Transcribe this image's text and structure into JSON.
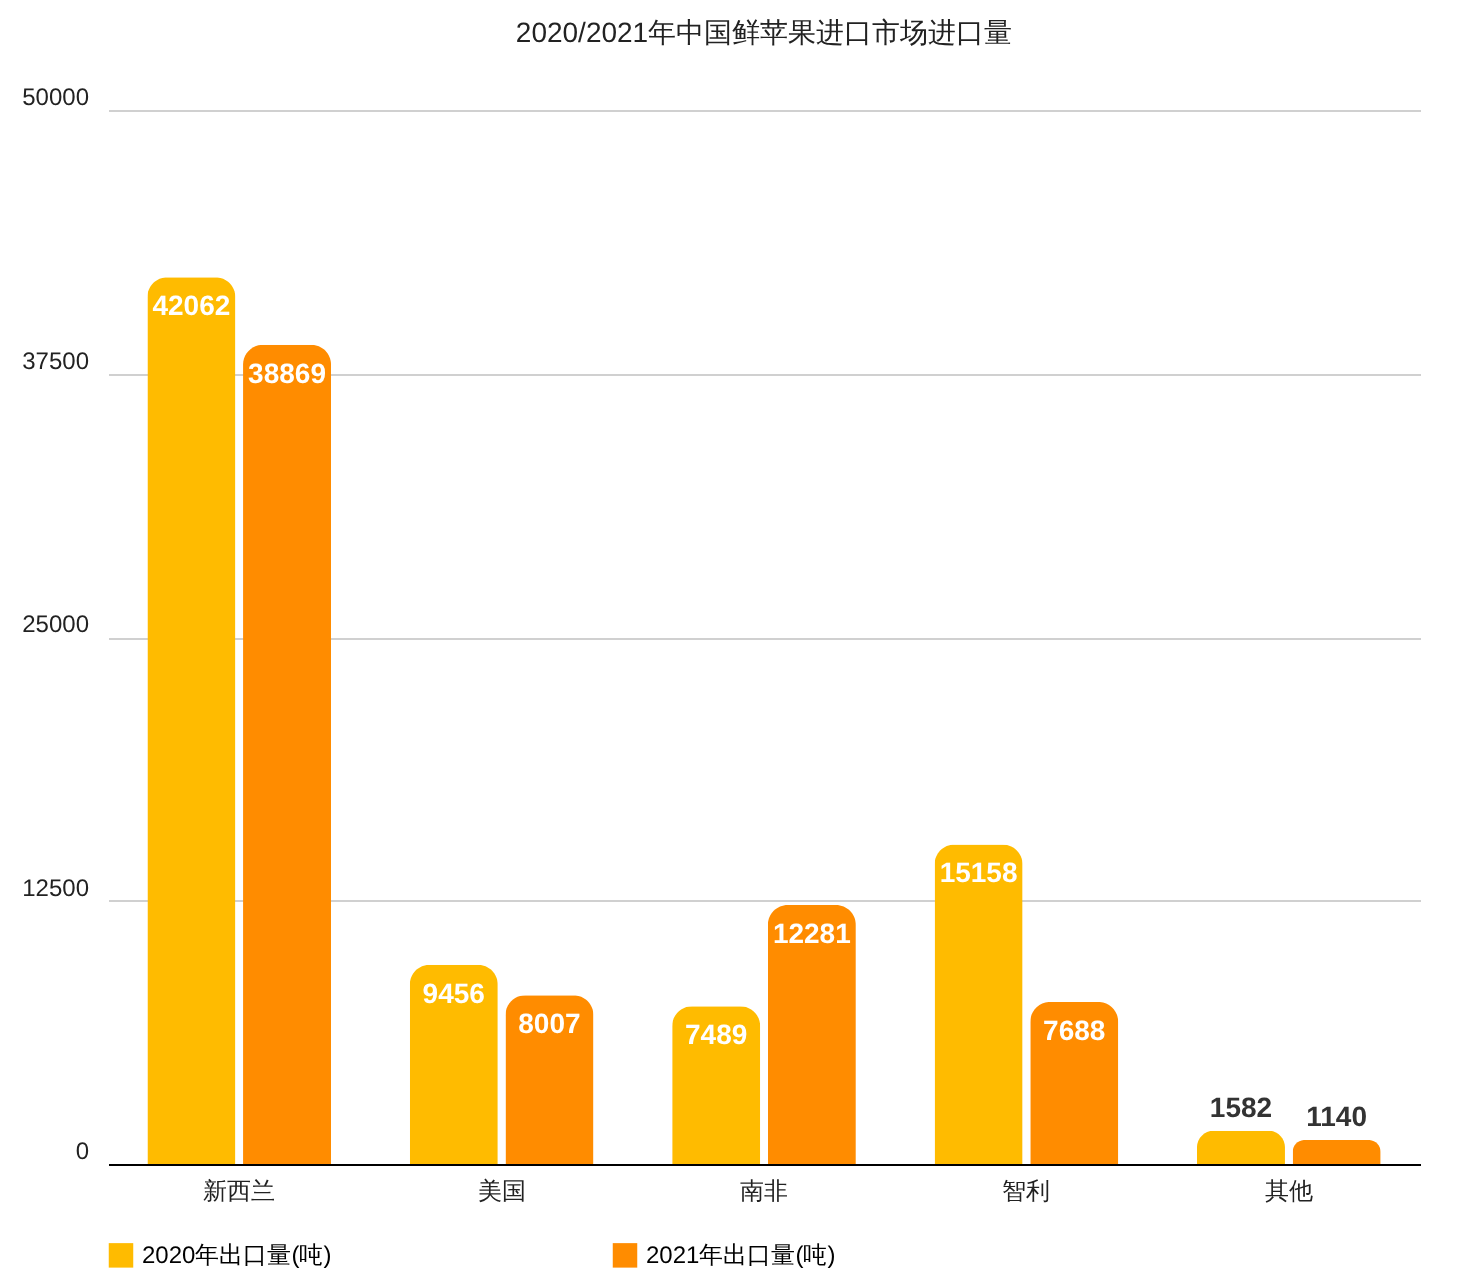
{
  "chart_data": {
    "type": "bar",
    "title": "2020/2021年中国鲜苹果进口市场进口量",
    "categories": [
      "新西兰",
      "美国",
      "南非",
      "智利",
      "其他"
    ],
    "series": [
      {
        "name": "2020年出口量(吨)",
        "color": "#ffbb00",
        "values": [
          42062,
          9456,
          7489,
          15158,
          1582
        ]
      },
      {
        "name": "2021年出口量(吨)",
        "color": "#ff8c00",
        "values": [
          38869,
          8007,
          12281,
          7688,
          1140
        ]
      }
    ],
    "ylim": [
      0,
      50000
    ],
    "yticks": [
      0,
      12500,
      25000,
      37500,
      50000
    ],
    "grid": "y",
    "legend": "bottom",
    "data_labels": true
  }
}
